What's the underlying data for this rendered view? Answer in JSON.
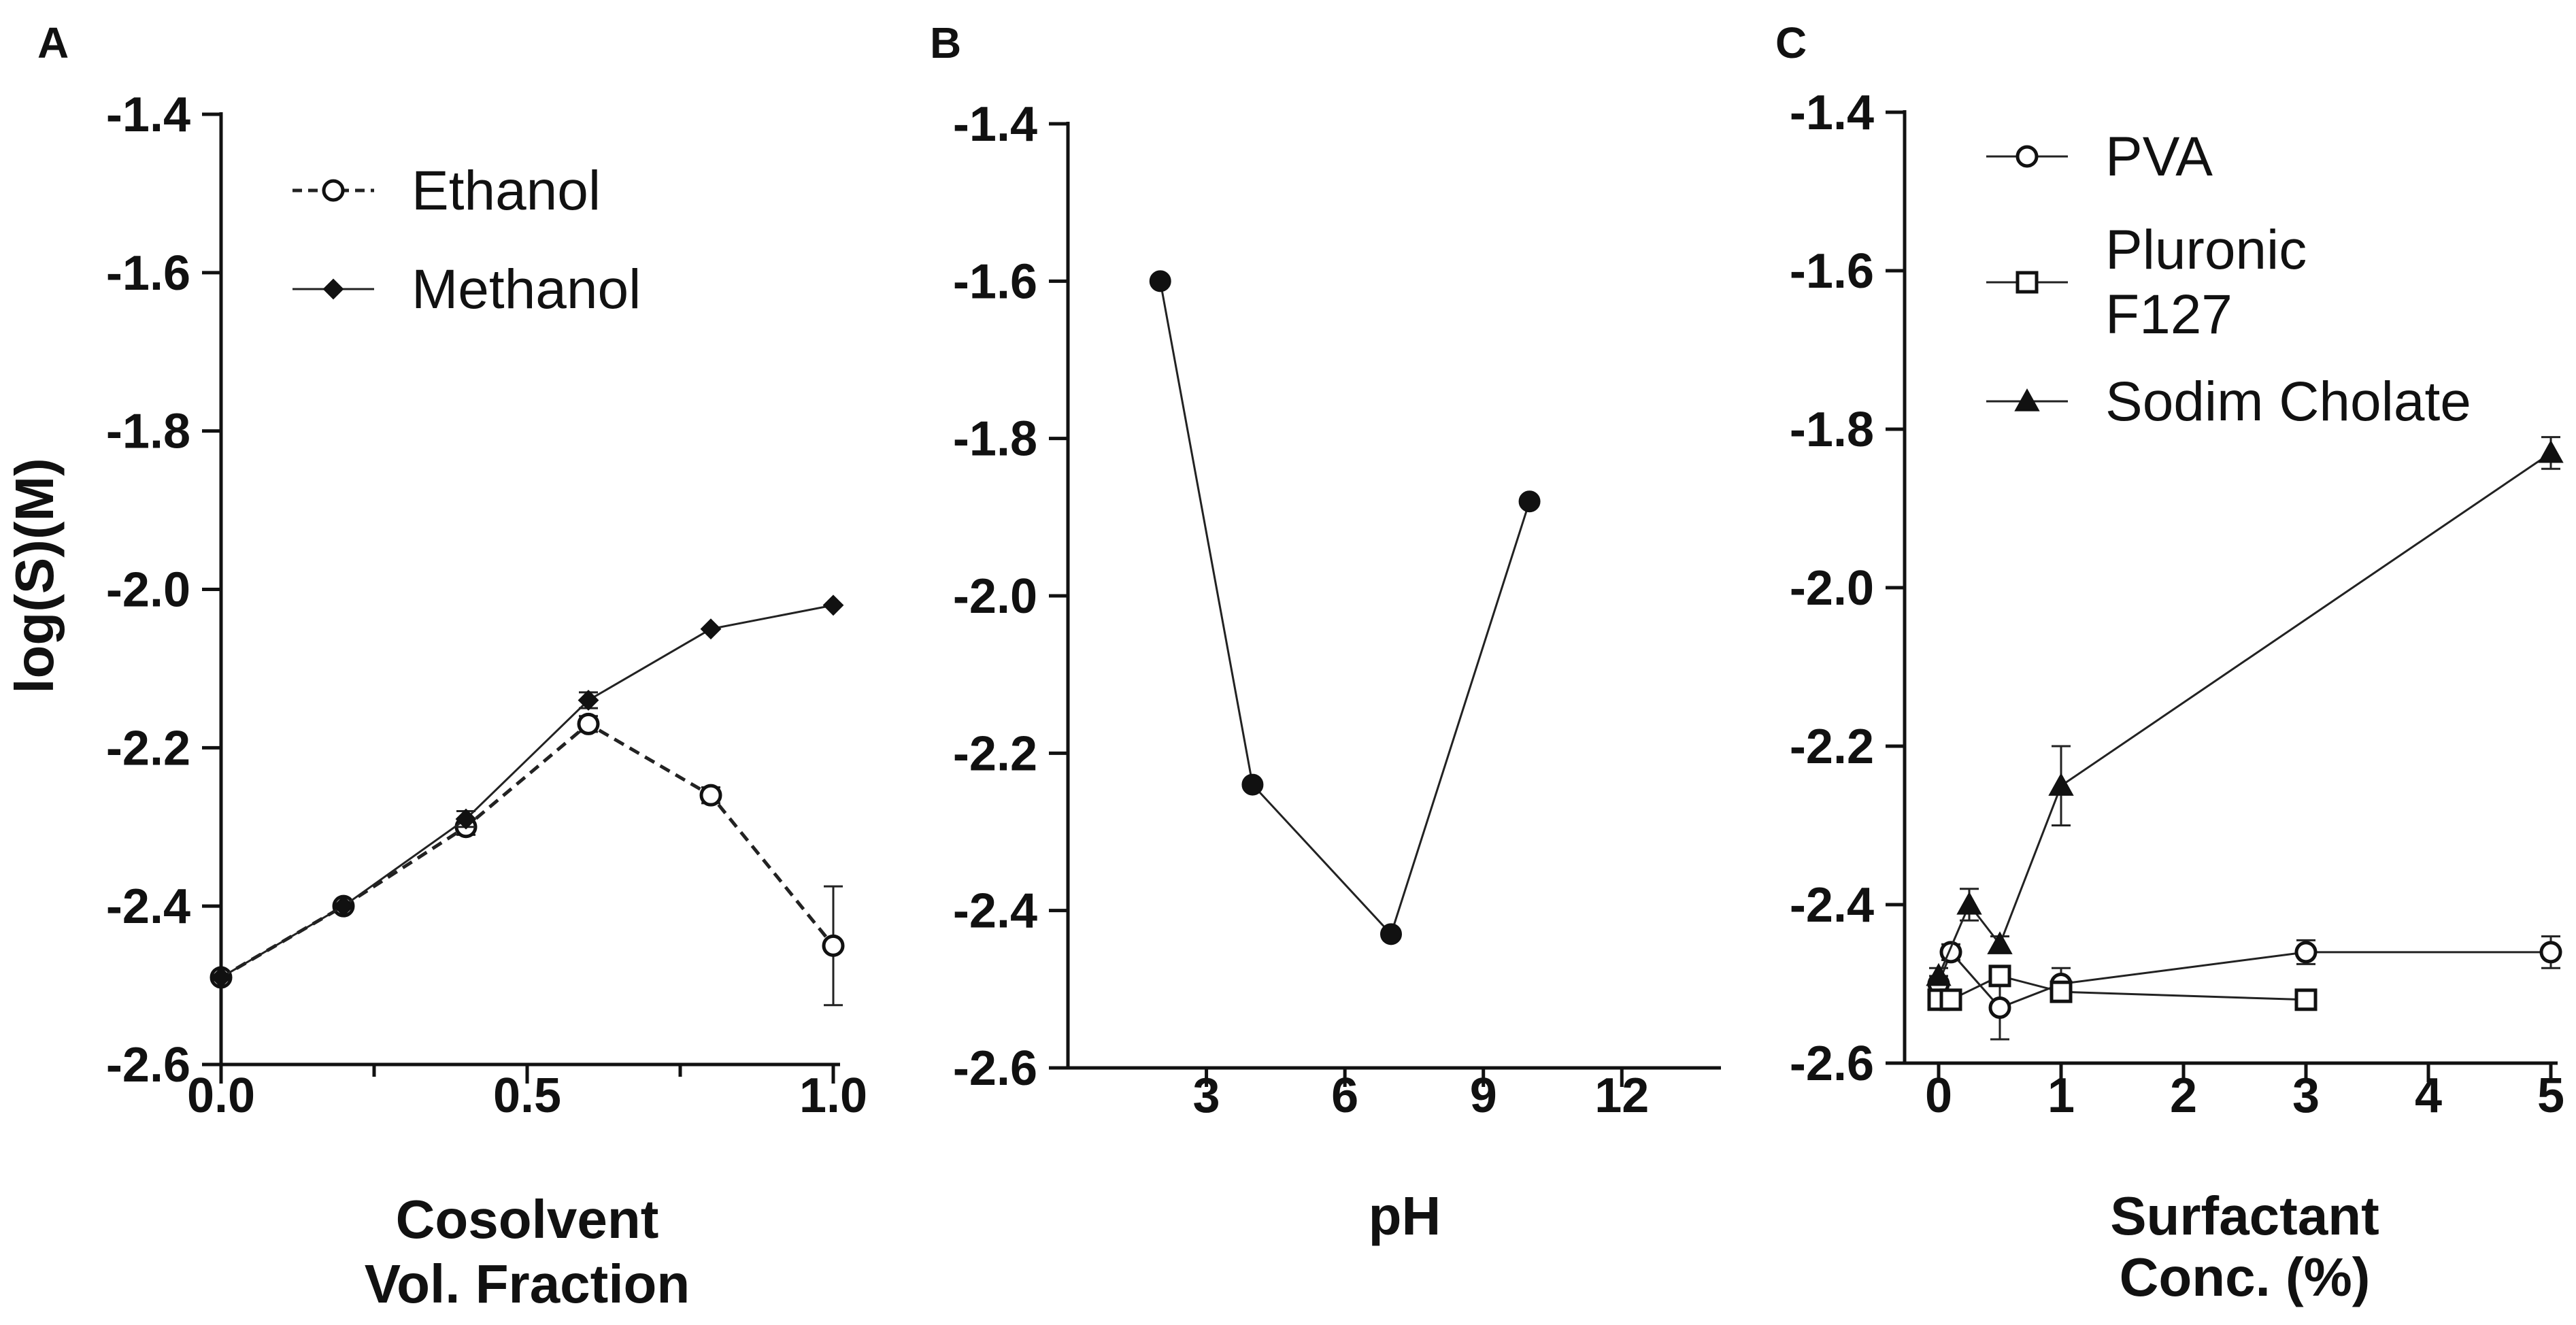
{
  "chart_data": [
    {
      "type": "line",
      "panel_label": "A",
      "title": "",
      "xlabel": [
        "Cosolvent",
        "Vol.  Fraction"
      ],
      "ylabel": "log(S)(M)",
      "xlim": [
        0,
        1
      ],
      "ylim": [
        -2.6,
        -1.4
      ],
      "xticks": [
        0.0,
        0.5,
        1.0
      ],
      "xtick_labels": [
        "0.0",
        "0.5",
        "1.0"
      ],
      "x_minor_ticks": [
        0.25,
        0.75
      ],
      "yticks": [
        -1.4,
        -1.6,
        -1.8,
        -2.0,
        -2.2,
        -2.4,
        -2.6
      ],
      "ytick_labels": [
        "-1.4",
        "-1.6",
        "-1.8",
        "-2.0",
        "-2.2",
        "-2.4",
        "-2.6"
      ],
      "legend_position": "top-left",
      "series": [
        {
          "name": "Ethanol",
          "marker": "circle",
          "line": "dashed",
          "x": [
            0.0,
            0.2,
            0.4,
            0.6,
            0.8,
            1.0
          ],
          "y": [
            -2.49,
            -2.4,
            -2.3,
            -2.17,
            -2.26,
            -2.45
          ],
          "err": [
            0,
            0,
            0.01,
            0.01,
            0.01,
            0.075
          ]
        },
        {
          "name": "Methanol",
          "marker": "diamond",
          "line": "solid",
          "x": [
            0.0,
            0.2,
            0.4,
            0.6,
            0.8,
            1.0
          ],
          "y": [
            -2.49,
            -2.4,
            -2.29,
            -2.14,
            -2.05,
            -2.02
          ],
          "err": [
            0,
            0,
            0.01,
            0.01,
            0,
            0
          ]
        }
      ]
    },
    {
      "type": "line",
      "panel_label": "B",
      "title": "",
      "xlabel": [
        "pH"
      ],
      "ylabel": "",
      "xlim": [
        0,
        14
      ],
      "ylim": [
        -2.6,
        -1.4
      ],
      "xticks": [
        3,
        6,
        9,
        12
      ],
      "xtick_labels": [
        "3",
        "6",
        "9",
        "12"
      ],
      "yticks": [
        -1.4,
        -1.6,
        -1.8,
        -2.0,
        -2.2,
        -2.4,
        -2.6
      ],
      "ytick_labels": [
        "-1.4",
        "-1.6",
        "-1.8",
        "-2.0",
        "-2.2",
        "-2.4",
        "-2.6"
      ],
      "series": [
        {
          "name": "pH",
          "marker": "filled-circle",
          "line": "solid",
          "x": [
            2,
            4,
            7,
            10
          ],
          "y": [
            -1.6,
            -2.24,
            -2.43,
            -1.88
          ],
          "err": [
            0,
            0,
            0,
            0
          ]
        }
      ]
    },
    {
      "type": "line",
      "panel_label": "C",
      "title": "",
      "xlabel": [
        "Surfactant",
        "Conc. (%)"
      ],
      "ylabel": "",
      "xlim": [
        0,
        5
      ],
      "ylim": [
        -2.6,
        -1.4
      ],
      "xticks": [
        0,
        1,
        2,
        3,
        4,
        5
      ],
      "xtick_labels": [
        "0",
        "1",
        "2",
        "3",
        "4",
        "5"
      ],
      "yticks": [
        -1.4,
        -1.6,
        -1.8,
        -2.0,
        -2.2,
        -2.4,
        -2.6
      ],
      "ytick_labels": [
        "-1.4",
        "-1.6",
        "-1.8",
        "-2.0",
        "-2.2",
        "-2.4",
        "-2.6"
      ],
      "legend_position": "top-left",
      "series": [
        {
          "name": "PVA",
          "legend_lines": [
            "PVA"
          ],
          "marker": "circle",
          "line": "solid",
          "x": [
            0.0,
            0.1,
            0.5,
            1.0,
            3.0,
            5.0
          ],
          "y": [
            -2.5,
            -2.46,
            -2.53,
            -2.5,
            -2.46,
            -2.46
          ],
          "err": [
            0.01,
            0.01,
            0.04,
            0.02,
            0.015,
            0.02
          ]
        },
        {
          "name": "Pluronic F127",
          "legend_lines": [
            "Pluronic",
            "F127"
          ],
          "marker": "square",
          "line": "solid",
          "x": [
            0.0,
            0.1,
            0.5,
            1.0,
            3.0
          ],
          "y": [
            -2.52,
            -2.52,
            -2.49,
            -2.51,
            -2.52
          ],
          "err": [
            0.01,
            0.01,
            0.01,
            0.01,
            0.01
          ]
        },
        {
          "name": "Sodim Cholate",
          "legend_lines": [
            "Sodim Cholate"
          ],
          "marker": "triangle",
          "line": "solid",
          "x": [
            0.0,
            0.25,
            0.5,
            1.0,
            5.0
          ],
          "y": [
            -2.49,
            -2.4,
            -2.45,
            -2.25,
            -1.83
          ],
          "err": [
            0.01,
            0.02,
            0.01,
            0.05,
            0.02
          ]
        }
      ]
    }
  ]
}
